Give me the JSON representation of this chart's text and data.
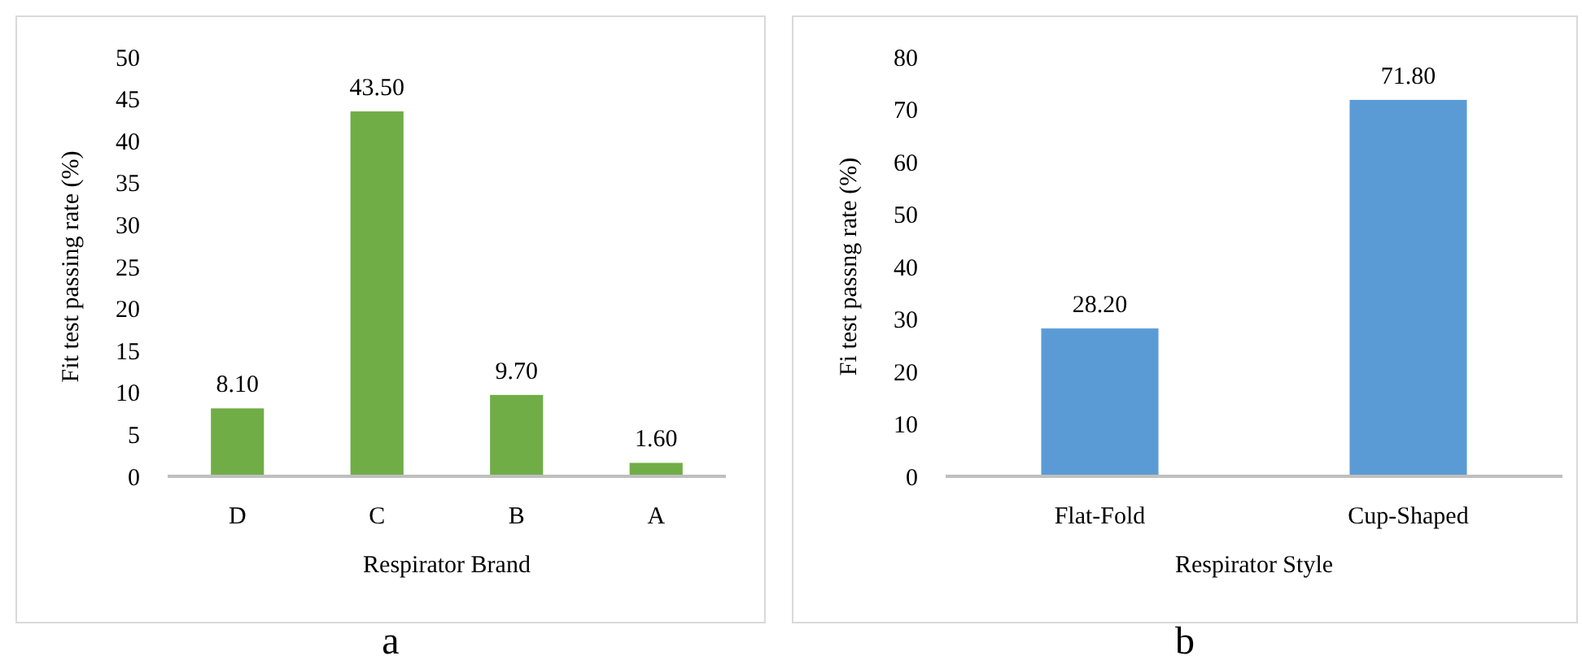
{
  "chart_data": [
    {
      "type": "bar",
      "xlabel": "Respirator Brand",
      "ylabel": "Fit test passing rate (%)",
      "categories": [
        "D",
        "C",
        "B",
        "A"
      ],
      "values": [
        8.1,
        43.5,
        9.7,
        1.6
      ],
      "value_labels": [
        "8.10",
        "43.50",
        "9.70",
        "1.60"
      ],
      "color": "#70ad47",
      "ylim": [
        0,
        50
      ],
      "yticks": [
        0,
        5,
        10,
        15,
        20,
        25,
        30,
        35,
        40,
        45,
        50
      ],
      "grid": false,
      "annotations": [
        "a"
      ]
    },
    {
      "type": "bar",
      "xlabel": "Respirator Style",
      "ylabel": "Fi test passng rate (%)",
      "categories": [
        "Flat-Fold",
        "Cup-Shaped"
      ],
      "values": [
        28.2,
        71.8
      ],
      "value_labels": [
        "28.20",
        "71.80"
      ],
      "color": "#5b9bd5",
      "ylim": [
        0,
        80
      ],
      "yticks": [
        0,
        10,
        20,
        30,
        40,
        50,
        60,
        70,
        80
      ],
      "grid": false,
      "annotations": [
        "b"
      ]
    }
  ]
}
